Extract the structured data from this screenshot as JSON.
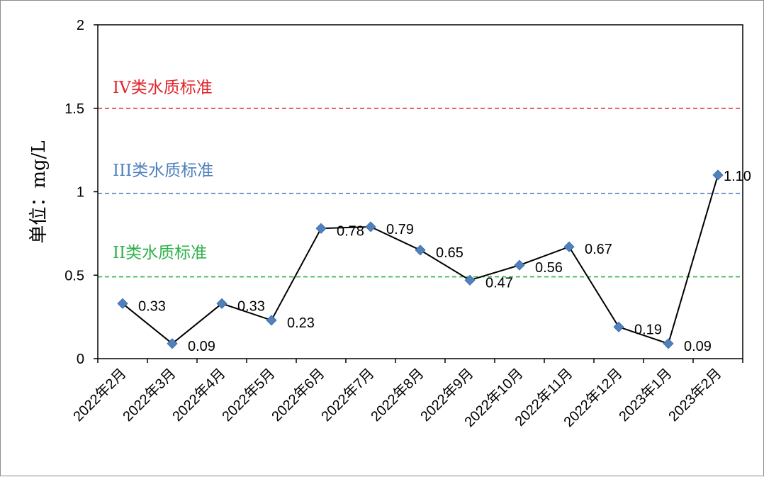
{
  "chart_data": {
    "type": "line",
    "title": "",
    "xlabel": "",
    "ylabel": "单位：mg/L",
    "ylim": [
      0,
      2
    ],
    "yticks": [
      "0",
      "0.5",
      "1",
      "1.5",
      "2"
    ],
    "grid": false,
    "categories": [
      "2022年2月",
      "2022年3月",
      "2022年4月",
      "2022年5月",
      "2022年6月",
      "2022年7月",
      "2022年8月",
      "2022年9月",
      "2022年10月",
      "2022年11月",
      "2022年12月",
      "2023年1月",
      "2023年2月"
    ],
    "series": [
      {
        "values": [
          0.33,
          0.09,
          0.33,
          0.23,
          0.78,
          0.79,
          0.65,
          0.47,
          0.56,
          0.67,
          0.19,
          0.09,
          1.1
        ],
        "labels": [
          "0.33",
          "0.09",
          "0.33",
          "0.23",
          "0.78",
          "0.79",
          "0.65",
          "0.47",
          "0.56",
          "0.67",
          "0.19",
          "0.09",
          "1.10"
        ],
        "color": "#000000",
        "marker_color": "#4f81bd"
      }
    ],
    "reference_lines": [
      {
        "label": "IV类水质标准",
        "value": 1.5,
        "color": "#e0262b"
      },
      {
        "label": "III类水质标准",
        "value": 0.99,
        "color": "#4f81bd"
      },
      {
        "label": "II类水质标准",
        "value": 0.49,
        "color": "#2fb14a"
      }
    ]
  }
}
